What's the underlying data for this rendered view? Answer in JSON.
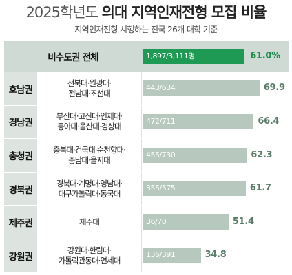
{
  "title": {
    "year_part": "2025학년도",
    "main_part": "의대 지역인재전형 모집 비율"
  },
  "subtitle": "지역인재전형 시행하는 전국 26개 대학 기준",
  "colors": {
    "total_bar": "#1f9a55",
    "total_pct": "#1b8a4a",
    "region_bar": "#b7c9bf",
    "region_bar_text": "#ffffff",
    "region_pct": "#5a7d69",
    "label_bg": "#dde4e0"
  },
  "chart_data": {
    "type": "bar",
    "title": "2025학년도 의대 지역인재전형 모집 비율",
    "subtitle": "지역인재전형 시행하는 전국 26개 대학 기준",
    "xlim": [
      0,
      100
    ],
    "total": {
      "name": "비수도권 전체",
      "count_label": "1,897/3,111명",
      "recruited": 1897,
      "quota": 3111,
      "value": 61.0,
      "value_label": "61.0%"
    },
    "rows": [
      {
        "region": "호남권",
        "universities": [
          "전북대·원광대·",
          "전남대·조선대"
        ],
        "count_label": "443/634",
        "recruited": 443,
        "quota": 634,
        "value": 69.9,
        "value_label": "69.9"
      },
      {
        "region": "경남권",
        "universities": [
          "부산대·고신대·인제대·",
          "동아대·울산대·경상대"
        ],
        "count_label": "472/711",
        "recruited": 472,
        "quota": 711,
        "value": 66.4,
        "value_label": "66.4"
      },
      {
        "region": "충청권",
        "universities": [
          "충북대·건국대·순천향대·",
          "충남대·을지대"
        ],
        "count_label": "455/730",
        "recruited": 455,
        "quota": 730,
        "value": 62.3,
        "value_label": "62.3"
      },
      {
        "region": "경북권",
        "universities": [
          "경북대·계명대·영남대·",
          "대구가톨릭대·동국대"
        ],
        "count_label": "355/575",
        "recruited": 355,
        "quota": 575,
        "value": 61.7,
        "value_label": "61.7"
      },
      {
        "region": "제주권",
        "universities": [
          "제주대"
        ],
        "count_label": "36/70",
        "recruited": 36,
        "quota": 70,
        "value": 51.4,
        "value_label": "51.4"
      },
      {
        "region": "강원권",
        "universities": [
          "강원대·한림대·",
          "가톨릭관동대·연세대"
        ],
        "count_label": "136/391",
        "recruited": 136,
        "quota": 391,
        "value": 34.8,
        "value_label": "34.8"
      }
    ]
  }
}
